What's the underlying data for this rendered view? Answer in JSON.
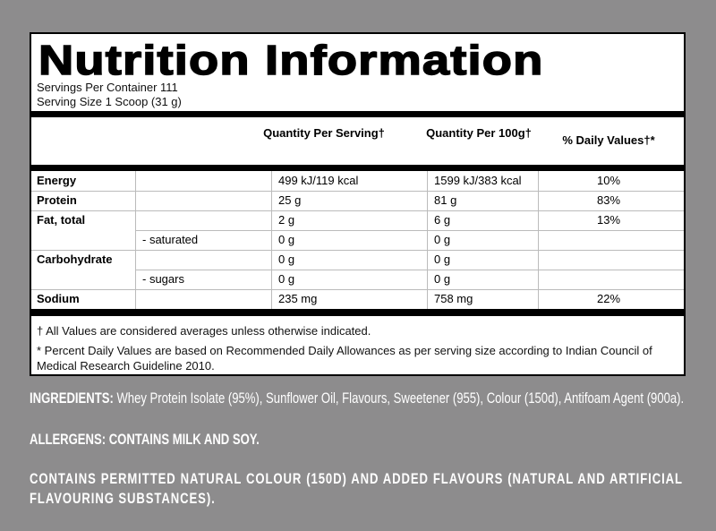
{
  "header": {
    "title": "Nutrition Information",
    "servings_per_container": "Servings Per Container 111",
    "serving_size": "Serving Size 1 Scoop (31 g)"
  },
  "table": {
    "columns": [
      "Quantity Per Serving†",
      "Quantity Per 100g†",
      "% Daily Values†*"
    ],
    "rows": [
      {
        "name": "Energy",
        "serving": "499 kJ/119 kcal",
        "per100g": "1599 kJ/383 kcal",
        "daily": "10%"
      },
      {
        "name": "Protein",
        "serving": "25 g",
        "per100g": "81 g",
        "daily": "83%"
      },
      {
        "name": "Fat, total",
        "serving": "2 g",
        "per100g": "6 g",
        "daily": "13%"
      },
      {
        "name": "- saturated",
        "indent": true,
        "serving": "0 g",
        "per100g": "0 g"
      },
      {
        "name": "Carbohydrate",
        "serving": "0 g",
        "per100g": "0 g"
      },
      {
        "name": "- sugars",
        "indent": true,
        "serving": "0 g",
        "per100g": "0 g"
      },
      {
        "name": "Sodium",
        "serving": "235 mg",
        "per100g": "758 mg",
        "daily": "22%"
      }
    ]
  },
  "footnotes": [
    "† All Values are considered averages unless otherwise indicated.",
    "* Percent Daily Values are based on Recommended Daily Allowances as per serving size according to Indian Council of Medical Research Guideline 2010."
  ],
  "ingredients": {
    "label": "INGREDIENTS:",
    "text": "Whey Protein Isolate (95%), Sunflower Oil, Flavours, Sweetener (955),  Colour (150d), Antifoam Agent (900a)."
  },
  "allergens": "ALLERGENS: CONTAINS MILK AND SOY.",
  "note": "CONTAINS PERMITTED NATURAL COLOUR (150D) AND ADDED FLAVOURS (NATURAL AND ARTIFICIAL FLAVOURING SUBSTANCES)."
}
